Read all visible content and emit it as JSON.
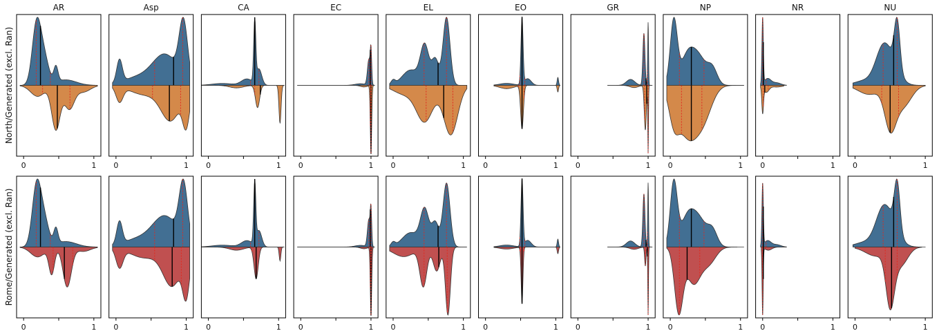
{
  "chart_data": {
    "type": "split-violin",
    "columns": [
      "AR",
      "Asp",
      "CA",
      "EC",
      "EL",
      "EO",
      "GR",
      "NP",
      "NR",
      "NU"
    ],
    "rows": [
      {
        "label": "North/Generated (excl. Ran)",
        "top_series": "Generated (excl. Ran)",
        "bottom_series": "North"
      },
      {
        "label": "Rome/Generated (excl. Ran)",
        "top_series": "Generated (excl. Ran)",
        "bottom_series": "Rome"
      }
    ],
    "x_ticks": [
      {
        "value": 0,
        "label": "0"
      },
      {
        "value": 0.5,
        "label": ""
      },
      {
        "value": 1,
        "label": "1"
      }
    ],
    "xlim": [
      -0.1,
      1.1
    ],
    "colors": {
      "top": "#426f93",
      "north": "#d4894a",
      "rome": "#c05050",
      "quartile": "#e0281e",
      "median": "#000000"
    },
    "panels": {
      "AR": {
        "top": {
          "peaks": [
            [
              0.18,
              0.06,
              1.0
            ],
            [
              0.28,
              0.07,
              0.55
            ],
            [
              0.46,
              0.03,
              0.28
            ],
            [
              0.6,
              0.15,
              0.1
            ]
          ],
          "range": [
            -0.05,
            1.05
          ],
          "q": [
            0.18,
            0.24,
            0.38
          ]
        },
        "north": {
          "peaks": [
            [
              0.2,
              0.1,
              0.2
            ],
            [
              0.46,
              0.06,
              0.8
            ],
            [
              0.65,
              0.07,
              0.42
            ],
            [
              0.85,
              0.1,
              0.12
            ]
          ],
          "range": [
            -0.05,
            1.05
          ],
          "q": [
            0.27,
            0.48,
            0.66
          ]
        },
        "rome": {
          "peaks": [
            [
              0.2,
              0.1,
              0.18
            ],
            [
              0.4,
              0.04,
              0.48
            ],
            [
              0.62,
              0.06,
              0.72
            ],
            [
              0.85,
              0.1,
              0.08
            ]
          ],
          "range": [
            -0.05,
            1.05
          ],
          "q": [
            0.42,
            0.58,
            0.7
          ]
        }
      },
      "Asp": {
        "top": {
          "peaks": [
            [
              0.05,
              0.04,
              0.3
            ],
            [
              0.3,
              0.2,
              0.1
            ],
            [
              0.7,
              0.18,
              0.4
            ],
            [
              0.96,
              0.06,
              0.75
            ]
          ],
          "range": [
            -0.05,
            1.05
          ],
          "q": [
            0.55,
            0.82,
            0.95
          ]
        },
        "north": {
          "peaks": [
            [
              0.05,
              0.05,
              0.2
            ],
            [
              0.4,
              0.2,
              0.12
            ],
            [
              0.78,
              0.14,
              0.45
            ],
            [
              1.0,
              0.05,
              0.45
            ]
          ],
          "range": [
            -0.05,
            1.05
          ],
          "q": [
            0.52,
            0.76,
            0.92
          ]
        },
        "rome": {
          "peaks": [
            [
              0.05,
              0.05,
              0.25
            ],
            [
              0.4,
              0.2,
              0.14
            ],
            [
              0.8,
              0.13,
              0.5
            ],
            [
              1.0,
              0.05,
              0.55
            ]
          ],
          "range": [
            -0.05,
            1.05
          ],
          "q": [
            0.55,
            0.8,
            0.93
          ]
        }
      },
      "CA": {
        "top": {
          "peaks": [
            [
              0.2,
              0.15,
              0.03
            ],
            [
              0.55,
              0.08,
              0.1
            ],
            [
              0.66,
              0.015,
              0.95
            ],
            [
              0.72,
              0.04,
              0.25
            ]
          ],
          "range": [
            -0.1,
            1.08
          ],
          "q": [
            0.6,
            0.66,
            0.72
          ]
        },
        "north": {
          "peaks": [
            [
              0.4,
              0.1,
              0.04
            ],
            [
              0.7,
              0.03,
              0.35
            ],
            [
              1.02,
              0.015,
              0.6
            ]
          ],
          "range": [
            -0.1,
            1.08
          ],
          "q": [
            0.66,
            0.74,
            0.85
          ]
        },
        "rome": {
          "peaks": [
            [
              0.4,
              0.1,
              0.05
            ],
            [
              0.68,
              0.03,
              0.5
            ],
            [
              1.02,
              0.012,
              0.22
            ]
          ],
          "range": [
            -0.1,
            1.08
          ],
          "q": [
            0.62,
            0.68,
            0.8
          ]
        }
      },
      "EC": {
        "top": {
          "peaks": [
            [
              0.85,
              0.08,
              0.02
            ],
            [
              0.97,
              0.02,
              0.32
            ],
            [
              1.0,
              0.01,
              0.4
            ]
          ],
          "range": [
            -0.05,
            1.05
          ],
          "q": [
            0.97,
            0.99,
            1.0
          ]
        },
        "north": {
          "peaks": [
            [
              0.9,
              0.05,
              0.02
            ],
            [
              1.0,
              0.01,
              0.85
            ]
          ],
          "range": [
            -0.05,
            1.05
          ],
          "q": [
            0.99,
            1.0,
            1.0
          ]
        },
        "rome": {
          "peaks": [
            [
              0.9,
              0.05,
              0.02
            ],
            [
              1.0,
              0.01,
              0.8
            ]
          ],
          "range": [
            -0.05,
            1.05
          ],
          "q": [
            0.99,
            1.0,
            1.0
          ]
        }
      },
      "EL": {
        "top": {
          "peaks": [
            [
              0.0,
              0.03,
              0.05
            ],
            [
              0.25,
              0.12,
              0.18
            ],
            [
              0.45,
              0.06,
              0.45
            ],
            [
              0.6,
              0.05,
              0.3
            ],
            [
              0.76,
              0.05,
              0.8
            ]
          ],
          "range": [
            -0.05,
            1.05
          ],
          "q": [
            0.44,
            0.64,
            0.76
          ]
        },
        "north": {
          "peaks": [
            [
              0.15,
              0.15,
              0.1
            ],
            [
              0.45,
              0.12,
              0.42
            ],
            [
              0.82,
              0.1,
              0.58
            ]
          ],
          "range": [
            -0.05,
            1.05
          ],
          "q": [
            0.47,
            0.72,
            0.85
          ]
        },
        "rome": {
          "peaks": [
            [
              0.15,
              0.15,
              0.12
            ],
            [
              0.43,
              0.05,
              0.48
            ],
            [
              0.62,
              0.05,
              0.3
            ],
            [
              0.78,
              0.035,
              0.85
            ]
          ],
          "range": [
            -0.05,
            1.05
          ],
          "q": [
            0.44,
            0.65,
            0.77
          ]
        }
      },
      "EO": {
        "top": {
          "peaks": [
            [
              0.3,
              0.1,
              0.03
            ],
            [
              0.52,
              0.015,
              1.0
            ],
            [
              0.6,
              0.05,
              0.1
            ],
            [
              1.03,
              0.01,
              0.12
            ]
          ],
          "range": [
            0.12,
            1.06
          ],
          "q": [
            0.49,
            0.52,
            0.56
          ]
        },
        "north": {
          "peaks": [
            [
              0.3,
              0.1,
              0.05
            ],
            [
              0.52,
              0.02,
              0.65
            ],
            [
              1.03,
              0.01,
              0.1
            ]
          ],
          "range": [
            0.12,
            1.06
          ],
          "q": [
            0.47,
            0.52,
            0.55
          ]
        },
        "rome": {
          "peaks": [
            [
              0.3,
              0.1,
              0.03
            ],
            [
              0.52,
              0.013,
              0.85
            ],
            [
              1.03,
              0.01,
              0.1
            ]
          ],
          "range": [
            0.12,
            1.06
          ],
          "q": [
            0.49,
            0.52,
            0.55
          ]
        }
      },
      "GR": {
        "top": {
          "peaks": [
            [
              0.75,
              0.06,
              0.08
            ],
            [
              0.94,
              0.015,
              0.7
            ],
            [
              1.0,
              0.006,
              0.85
            ]
          ],
          "range": [
            0.42,
            1.06
          ],
          "q": [
            0.94,
            0.97,
            0.99
          ]
        },
        "north": {
          "peaks": [
            [
              0.8,
              0.06,
              0.03
            ],
            [
              0.96,
              0.015,
              0.6
            ],
            [
              1.0,
              0.005,
              0.9
            ]
          ],
          "range": [
            0.42,
            1.06
          ],
          "q": [
            0.95,
            0.98,
            1.0
          ]
        },
        "rome": {
          "peaks": [
            [
              0.8,
              0.06,
              0.03
            ],
            [
              0.96,
              0.01,
              0.25
            ],
            [
              1.0,
              0.005,
              0.9
            ]
          ],
          "range": [
            0.42,
            1.06
          ],
          "q": [
            0.96,
            0.99,
            1.0
          ]
        }
      },
      "NP": {
        "top": {
          "peaks": [
            [
              0.05,
              0.05,
              0.8
            ],
            [
              0.25,
              0.1,
              0.38
            ],
            [
              0.42,
              0.1,
              0.3
            ],
            [
              0.6,
              0.07,
              0.2
            ]
          ],
          "range": [
            -0.05,
            1.05
          ],
          "q": [
            0.13,
            0.3,
            0.48
          ]
        },
        "north": {
          "peaks": [
            [
              0.05,
              0.07,
              0.35
            ],
            [
              0.25,
              0.14,
              0.62
            ],
            [
              0.48,
              0.12,
              0.35
            ]
          ],
          "range": [
            -0.05,
            1.05
          ],
          "q": [
            0.16,
            0.3,
            0.45
          ]
        },
        "rome": {
          "peaks": [
            [
              0.12,
              0.06,
              0.8
            ],
            [
              0.33,
              0.1,
              0.45
            ],
            [
              0.55,
              0.1,
              0.2
            ]
          ],
          "range": [
            -0.05,
            0.95
          ],
          "q": [
            0.13,
            0.24,
            0.42
          ]
        }
      },
      "NR": {
        "top": {
          "peaks": [
            [
              0.0,
              0.01,
              0.78
            ],
            [
              0.07,
              0.05,
              0.08
            ],
            [
              0.2,
              0.06,
              0.03
            ]
          ],
          "range": [
            -0.03,
            0.34
          ],
          "q": [
            0.0,
            0.01,
            0.05
          ]
        },
        "north": {
          "peaks": [
            [
              0.0,
              0.012,
              0.3
            ],
            [
              0.05,
              0.04,
              0.08
            ],
            [
              0.2,
              0.08,
              0.02
            ]
          ],
          "range": [
            -0.03,
            0.3
          ],
          "q": [
            0.01,
            0.03,
            0.08
          ]
        },
        "rome": {
          "peaks": [
            [
              0.0,
              0.008,
              0.85
            ],
            [
              0.08,
              0.05,
              0.04
            ]
          ],
          "range": [
            -0.02,
            0.34
          ],
          "q": [
            0.0,
            0.01,
            0.04
          ]
        }
      },
      "NU": {
        "top": {
          "peaks": [
            [
              0.15,
              0.15,
              0.08
            ],
            [
              0.38,
              0.1,
              0.4
            ],
            [
              0.6,
              0.04,
              0.8
            ],
            [
              0.5,
              0.12,
              0.4
            ]
          ],
          "range": [
            -0.03,
            1.0
          ],
          "q": [
            0.4,
            0.55,
            0.6
          ]
        },
        "north": {
          "peaks": [
            [
              0.2,
              0.15,
              0.15
            ],
            [
              0.5,
              0.08,
              0.65
            ],
            [
              0.68,
              0.12,
              0.35
            ]
          ],
          "range": [
            -0.03,
            1.0
          ],
          "q": [
            0.38,
            0.5,
            0.62
          ]
        },
        "rome": {
          "peaks": [
            [
              0.3,
              0.15,
              0.15
            ],
            [
              0.5,
              0.06,
              0.88
            ],
            [
              0.65,
              0.1,
              0.3
            ]
          ],
          "range": [
            0.0,
            0.95
          ],
          "q": [
            0.43,
            0.52,
            0.6
          ]
        }
      }
    }
  }
}
